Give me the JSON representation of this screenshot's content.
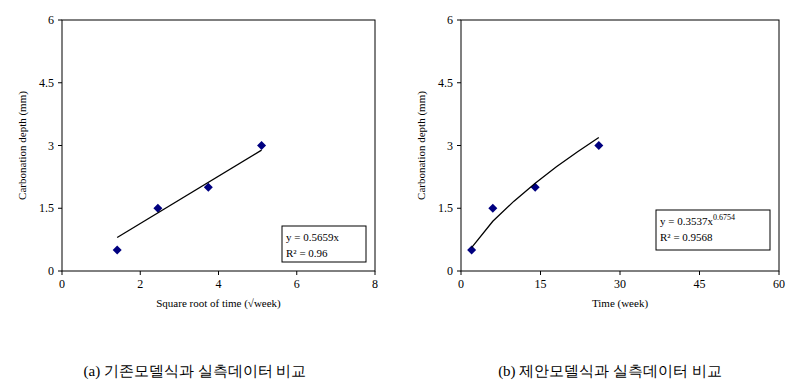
{
  "chart_data": [
    {
      "type": "scatter",
      "title": "(a) 기존모델식과 실측데이터 비교",
      "x_label": "Square root of time (√week)",
      "y_label": "Carbonation depth (mm)",
      "xlim": [
        0,
        8
      ],
      "xticks": [
        0,
        2,
        4,
        6,
        8
      ],
      "ylim": [
        0,
        6
      ],
      "yticks": [
        0,
        1.5,
        3,
        4.5,
        6
      ],
      "grid": false,
      "annotations": [
        "y = 0.5659x",
        "R² = 0.96"
      ],
      "series": [
        {
          "type": "scatter",
          "marker": "diamond",
          "color": "#000080",
          "x": [
            1.41,
            2.45,
            3.74,
            5.1
          ],
          "values": [
            0.5,
            1.5,
            2,
            3
          ]
        },
        {
          "type": "line",
          "line_style": "solid",
          "color": "#000000",
          "x": [
            1.41,
            5.1
          ],
          "values": [
            0.8,
            2.89
          ]
        }
      ]
    },
    {
      "type": "scatter",
      "title": "(b) 제안모델식과 실측데이터 비교",
      "x_label": "Time (week)",
      "y_label": "Carbonation depth (mm)",
      "xlim": [
        0,
        60
      ],
      "xticks": [
        0,
        15,
        30,
        45,
        60
      ],
      "ylim": [
        0,
        6
      ],
      "yticks": [
        0,
        1.5,
        3,
        4.5,
        6
      ],
      "grid": false,
      "annotations": [
        "y = 0.3537x0.6754",
        "R² = 0.9568"
      ],
      "series": [
        {
          "type": "scatter",
          "marker": "diamond",
          "color": "#000080",
          "x": [
            2,
            6,
            14,
            26
          ],
          "values": [
            0.5,
            1.5,
            2,
            3
          ]
        },
        {
          "type": "line",
          "line_style": "solid",
          "color": "#000000",
          "x": [
            2,
            6,
            10,
            14,
            18,
            22,
            26
          ],
          "values": [
            0.56,
            1.19,
            1.67,
            2.1,
            2.49,
            2.85,
            3.19
          ]
        }
      ]
    }
  ]
}
